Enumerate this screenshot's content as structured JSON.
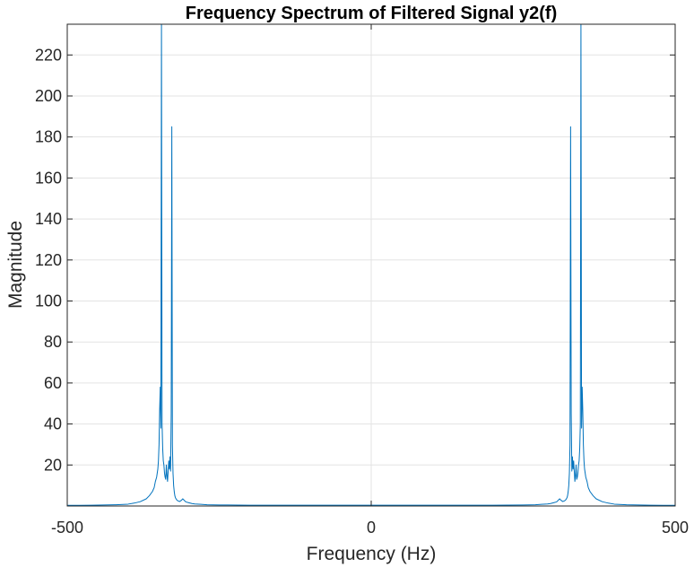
{
  "chart_data": {
    "type": "line",
    "title": "Frequency Spectrum of Filtered Signal y2(f)",
    "xlabel": "Frequency (Hz)",
    "ylabel": "Magnitude",
    "xlim": [
      -500,
      500
    ],
    "ylim": [
      0,
      235
    ],
    "xticks": [
      -500,
      0,
      500
    ],
    "xtick_labels": [
      "-500",
      "0",
      "500"
    ],
    "yticks": [
      20,
      40,
      60,
      80,
      100,
      120,
      140,
      160,
      180,
      200,
      220
    ],
    "ytick_labels": [
      "20",
      "40",
      "60",
      "80",
      "100",
      "120",
      "140",
      "160",
      "180",
      "200",
      "220"
    ],
    "grid": true,
    "symmetric": true,
    "series": [
      {
        "color": "#0072BD",
        "x": [
          -500,
          -480,
          -460,
          -440,
          -420,
          -400,
          -390,
          -380,
          -370,
          -365,
          -360,
          -357,
          -355,
          -353,
          -351,
          -350,
          -349,
          -348,
          -347,
          -346,
          -345,
          -344,
          -343,
          -342,
          -341,
          -340,
          -339,
          -338,
          -337,
          -336,
          -335,
          -334,
          -333,
          -332,
          -331,
          -330,
          -329,
          -328,
          -327,
          -326,
          -325,
          -324,
          -323,
          -322,
          -320,
          -318,
          -315,
          -312,
          -310,
          -305,
          -300,
          -295,
          -290,
          -280,
          -270,
          -250,
          -200,
          -150,
          -100,
          -50,
          0,
          50,
          100,
          150,
          200,
          250,
          270,
          280,
          290,
          295,
          300,
          305,
          310,
          312,
          315,
          318,
          320,
          322,
          323,
          324,
          325,
          326,
          327,
          328,
          329,
          330,
          331,
          332,
          333,
          334,
          335,
          336,
          337,
          338,
          339,
          340,
          341,
          342,
          343,
          344,
          345,
          346,
          347,
          348,
          349,
          350,
          351,
          353,
          355,
          357,
          360,
          365,
          370,
          380,
          390,
          400,
          420,
          440,
          460,
          480,
          500
        ],
        "y": [
          0.3,
          0.3,
          0.4,
          0.5,
          0.6,
          0.9,
          1.4,
          2.1,
          3.5,
          5,
          7,
          9,
          12,
          14,
          18,
          22,
          30,
          47,
          58,
          38,
          236,
          40,
          28,
          22,
          20,
          16,
          14,
          13,
          20,
          15,
          12,
          17,
          22,
          18,
          24,
          17,
          45,
          185,
          30,
          16,
          10,
          7,
          5,
          4,
          3,
          2.5,
          2.2,
          2.8,
          3.5,
          2,
          1.6,
          1.2,
          1,
          0.8,
          0.6,
          0.5,
          0.4,
          0.4,
          0.4,
          0.4,
          0.4,
          0.4,
          0.4,
          0.4,
          0.4,
          0.5,
          0.6,
          0.8,
          1,
          1.2,
          1.6,
          2,
          3.5,
          2.8,
          2.2,
          2.5,
          3,
          4,
          5,
          7,
          10,
          16,
          30,
          185,
          45,
          17,
          24,
          18,
          22,
          17,
          12,
          15,
          20,
          13,
          14,
          16,
          20,
          22,
          28,
          40,
          236,
          38,
          58,
          47,
          30,
          22,
          18,
          14,
          12,
          9,
          7,
          5,
          3.5,
          2.1,
          1.4,
          0.9,
          0.6,
          0.5,
          0.4,
          0.3,
          0.3
        ]
      }
    ]
  }
}
